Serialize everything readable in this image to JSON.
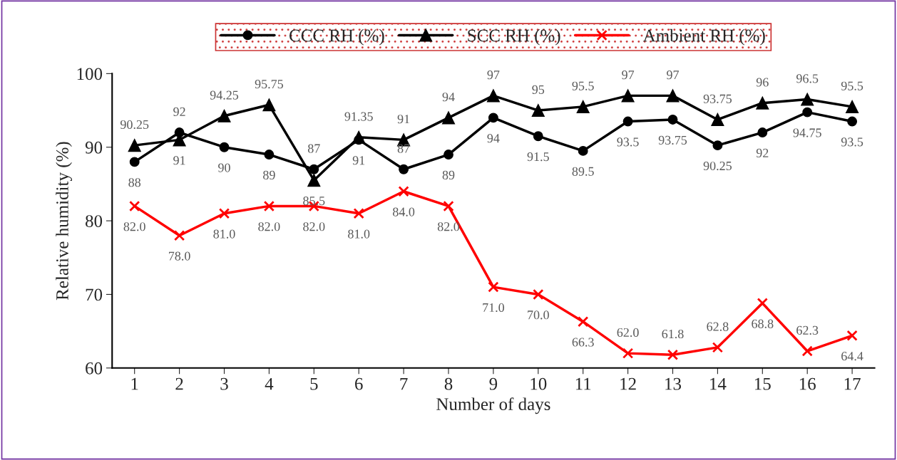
{
  "chart_data": {
    "type": "line",
    "xlabel": "Number of days",
    "ylabel": "Relative humidity (%)",
    "categories": [
      "1",
      "2",
      "3",
      "4",
      "5",
      "6",
      "7",
      "8",
      "9",
      "10",
      "11",
      "12",
      "13",
      "14",
      "15",
      "16",
      "17"
    ],
    "series": [
      {
        "name": "CCC RH (%)",
        "color": "#000000",
        "marker": "circle",
        "values": [
          88,
          92,
          90,
          89,
          87,
          91,
          87,
          89,
          94,
          91.5,
          89.5,
          93.5,
          93.75,
          90.25,
          92,
          94.75,
          93.5
        ],
        "value_labels": [
          "88",
          "92",
          "90",
          "89",
          "87",
          "91",
          "87",
          "89",
          "94",
          "91.5",
          "89.5",
          "93.5",
          "93.75",
          "90.25",
          "92",
          "94.75",
          "93.5"
        ]
      },
      {
        "name": "SCC RH (%)",
        "color": "#000000",
        "marker": "triangle",
        "values": [
          90.25,
          91,
          94.25,
          95.75,
          85.5,
          91.35,
          91,
          94,
          97,
          95,
          95.5,
          97,
          97,
          93.75,
          96,
          96.5,
          95.5
        ],
        "value_labels": [
          "90.25",
          "91",
          "94.25",
          "95.75",
          "85.5",
          "91.35",
          "91",
          "94",
          "97",
          "95",
          "95.5",
          "97",
          "97",
          "93.75",
          "96",
          "96.5",
          "95.5"
        ]
      },
      {
        "name": "Ambient RH (%)",
        "color": "#ff0000",
        "marker": "cross",
        "values": [
          82,
          78,
          81,
          82,
          82,
          81,
          84,
          82,
          71,
          70,
          66.3,
          62,
          61.8,
          62.8,
          68.8,
          62.3,
          64.4
        ],
        "value_labels": [
          "82.0",
          "78.0",
          "81.0",
          "82.0",
          "82.0",
          "81.0",
          "84.0",
          "82.0",
          "71.0",
          "70.0",
          "66.3",
          "62.0",
          "61.8",
          "62.8",
          "68.8",
          "62.3",
          "64.4"
        ]
      }
    ],
    "ylim": [
      60,
      100
    ],
    "yticks": [
      60,
      70,
      80,
      90,
      100
    ],
    "legend": "top",
    "grid": false
  }
}
